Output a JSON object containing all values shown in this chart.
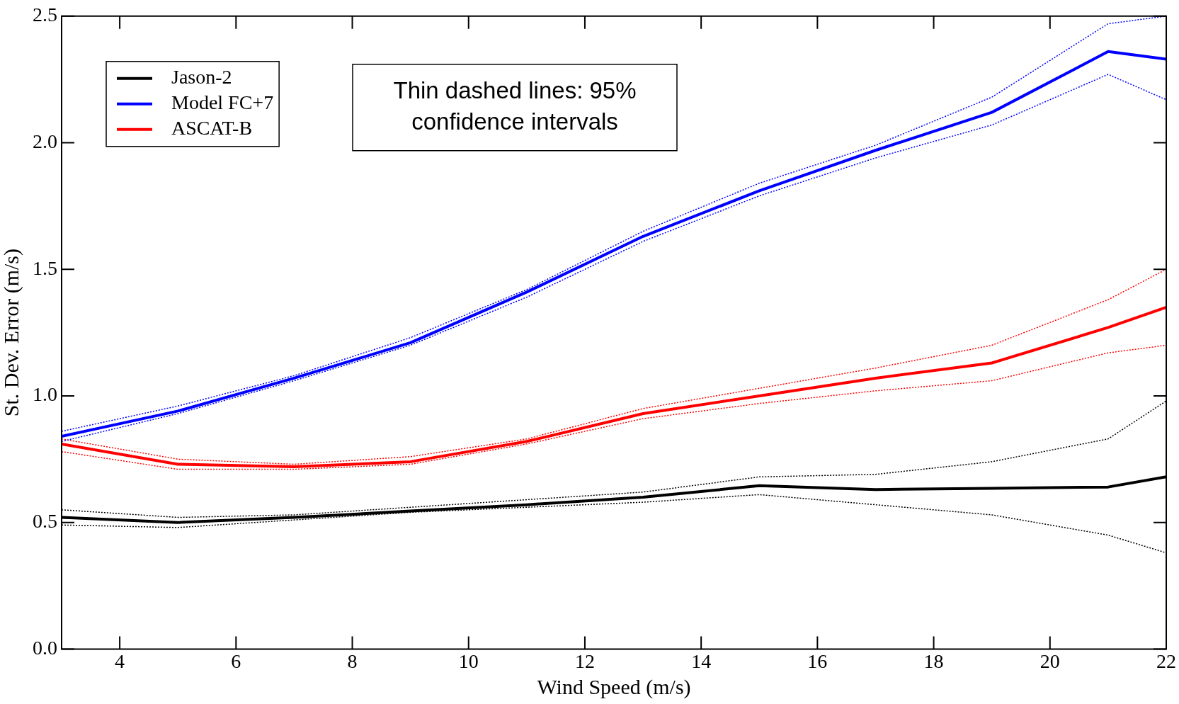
{
  "chart_data": {
    "type": "line",
    "xlabel": "Wind Speed (m/s)",
    "ylabel": "St. Dev. Error (m/s)",
    "x": [
      3,
      5,
      7,
      9,
      11,
      13,
      15,
      17,
      19,
      21,
      22
    ],
    "xlim": [
      3,
      22
    ],
    "xticks": [
      4,
      6,
      8,
      10,
      12,
      14,
      16,
      18,
      20,
      22
    ],
    "ylim": [
      0,
      2.5
    ],
    "yticks": [
      {
        "value": 0,
        "label": "0.0"
      },
      {
        "value": 0.5,
        "label": "0.5"
      },
      {
        "value": 1,
        "label": "1.0"
      },
      {
        "value": 1.5,
        "label": "1.5"
      },
      {
        "value": 2,
        "label": "2.0"
      },
      {
        "value": 2.5,
        "label": "2.5"
      }
    ],
    "grid": false,
    "legend": "top left",
    "marker": "none",
    "line_style": "solid",
    "annotations": [
      "Thin dashed lines: 95% confidence intervals"
    ],
    "series": [
      {
        "name": "Jason-2",
        "color": "#000000",
        "values": [
          0.52,
          0.5,
          0.52,
          0.545,
          0.57,
          0.6,
          0.645,
          0.63,
          0.635,
          0.64,
          0.68
        ]
      },
      {
        "name": "Model FC+7",
        "color": "#0000ff",
        "values": [
          0.84,
          0.94,
          1.07,
          1.21,
          1.41,
          1.63,
          1.81,
          1.97,
          2.12,
          2.36,
          2.33
        ]
      },
      {
        "name": "ASCAT-B",
        "color": "#ff0000",
        "values": [
          0.81,
          0.73,
          0.72,
          0.74,
          0.82,
          0.93,
          1.0,
          1.07,
          1.13,
          1.27,
          1.35
        ]
      },
      {
        "color": "#000000",
        "line_style": "dotted",
        "values": [
          0.55,
          0.52,
          0.53,
          0.56,
          0.59,
          0.62,
          0.68,
          0.69,
          0.74,
          0.83,
          0.98
        ]
      },
      {
        "color": "#000000",
        "line_style": "dotted",
        "values": [
          0.49,
          0.48,
          0.51,
          0.54,
          0.56,
          0.58,
          0.61,
          0.57,
          0.53,
          0.45,
          0.38
        ]
      },
      {
        "color": "#0000ff",
        "line_style": "dotted",
        "values": [
          0.86,
          0.96,
          1.08,
          1.23,
          1.42,
          1.65,
          1.84,
          1.99,
          2.18,
          2.47,
          2.5
        ]
      },
      {
        "color": "#0000ff",
        "line_style": "dotted",
        "values": [
          0.82,
          0.93,
          1.06,
          1.2,
          1.39,
          1.61,
          1.79,
          1.94,
          2.07,
          2.27,
          2.17
        ]
      },
      {
        "color": "#ff0000",
        "line_style": "dotted",
        "values": [
          0.83,
          0.75,
          0.73,
          0.76,
          0.83,
          0.95,
          1.03,
          1.11,
          1.2,
          1.38,
          1.5
        ]
      },
      {
        "color": "#ff0000",
        "line_style": "dotted",
        "values": [
          0.78,
          0.71,
          0.71,
          0.73,
          0.81,
          0.91,
          0.97,
          1.02,
          1.06,
          1.17,
          1.2
        ]
      }
    ]
  }
}
